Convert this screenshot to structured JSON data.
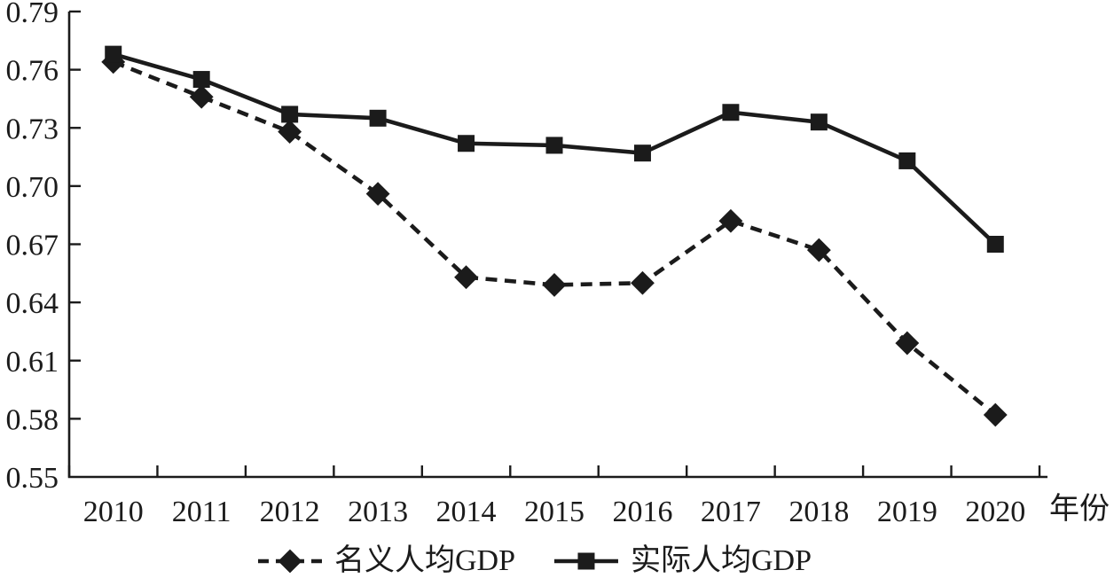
{
  "chart_data": {
    "type": "line",
    "title": "",
    "xlabel": "年份",
    "ylabel": "",
    "x": [
      "2010",
      "2011",
      "2012",
      "2013",
      "2014",
      "2015",
      "2016",
      "2017",
      "2018",
      "2019",
      "2020"
    ],
    "ylim": [
      0.55,
      0.79
    ],
    "ytick_step": 0.03,
    "ytick_labels": [
      "0.55",
      "0.58",
      "0.61",
      "0.64",
      "0.67",
      "0.70",
      "0.73",
      "0.76",
      "0.79"
    ],
    "grid": false,
    "legend_position": "bottom-center",
    "axis_color": "#1b1b1b",
    "series": [
      {
        "name": "名义人均GDP",
        "line_style": "dashed",
        "marker": "diamond",
        "color": "#1b1b1b",
        "values": [
          0.764,
          0.746,
          0.728,
          0.696,
          0.653,
          0.649,
          0.65,
          0.682,
          0.667,
          0.619,
          0.582
        ]
      },
      {
        "name": "实际人均GDP",
        "line_style": "solid",
        "marker": "square",
        "color": "#1b1b1b",
        "values": [
          0.768,
          0.755,
          0.737,
          0.735,
          0.722,
          0.721,
          0.717,
          0.738,
          0.733,
          0.713,
          0.67
        ]
      }
    ]
  }
}
